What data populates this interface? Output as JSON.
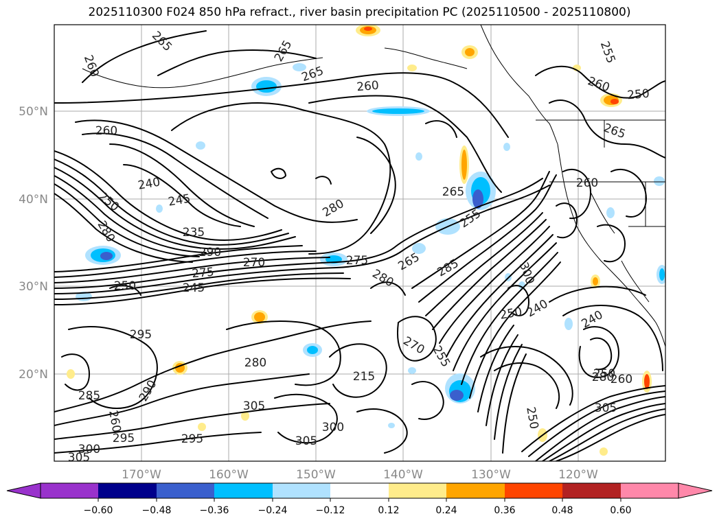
{
  "title": "2025110300 F024 850 hPa refract., river basin precipitation PC (2025110500 - 2025110800)",
  "lat_labels": [
    "50°N",
    "40°N",
    "30°N",
    "20°N"
  ],
  "lon_labels": [
    "170°W",
    "160°W",
    "150°W",
    "140°W",
    "130°W",
    "120°W"
  ],
  "colorbar": {
    "colors": [
      "#9932cc",
      "#00008b",
      "#3a5fcd",
      "#00bfff",
      "#b0e2ff",
      "#ffffff",
      "#ffec8b",
      "#ffa500",
      "#ff4500",
      "#b22222",
      "#ff88aa"
    ],
    "under_color": "#9932cc",
    "over_color": "#ff88aa",
    "tick_labels": [
      "−0.60",
      "−0.48",
      "−0.36",
      "−0.24",
      "−0.12",
      "0.12",
      "0.24",
      "0.36",
      "0.48",
      "0.60"
    ]
  },
  "contour_labels": [
    "265",
    "260",
    "265",
    "265",
    "260",
    "255",
    "260",
    "250",
    "265",
    "260",
    "240",
    "245",
    "250",
    "280",
    "275",
    "265",
    "260",
    "235",
    "290",
    "270",
    "275",
    "280",
    "250",
    "245",
    "280",
    "285",
    "265",
    "255",
    "295",
    "280",
    "270",
    "240",
    "250",
    "240",
    "280",
    "215",
    "305",
    "290",
    "285",
    "295",
    "295",
    "260",
    "300",
    "305",
    "300",
    "305",
    "250",
    "260",
    "250",
    "255",
    "305",
    "300"
  ]
}
